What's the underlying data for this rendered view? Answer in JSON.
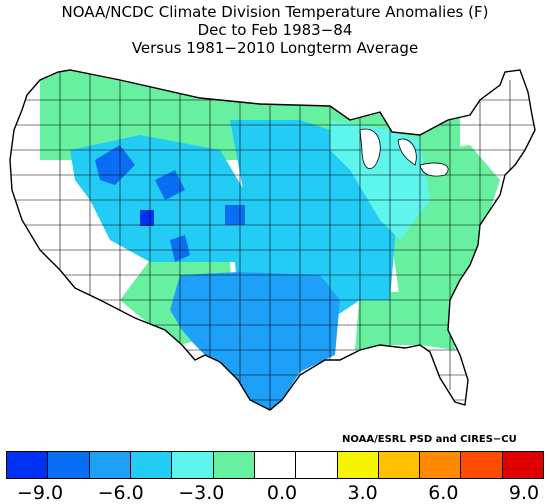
{
  "title": {
    "line1": "NOAA/NCDC Climate Division Temperature Anomalies (F)",
    "line2": "Dec to Feb 1983−84",
    "line3": "Versus 1981−2010 Longterm Average"
  },
  "credit": "NOAA/ESRL PSD and CIRES−CU",
  "legend": {
    "colors": [
      "#0030f0",
      "#0a6ef5",
      "#1ea0f8",
      "#22ccf5",
      "#5ef5ec",
      "#66f0a0",
      "#ffffff",
      "#ffffff",
      "#f5f500",
      "#ffc000",
      "#ff8a00",
      "#ff4a00",
      "#e00000"
    ],
    "ticks": [
      "−9.0",
      "−6.0",
      "−3.0",
      "0.0",
      "3.0",
      "6.0",
      "9.0"
    ]
  },
  "map_regions": {
    "northern_tier": "#66f0a0",
    "northwest_interior": "#22ccf5",
    "southwest": "#66f0a0",
    "central_plains": "#22ccf5",
    "texas_south": "#1ea0f8",
    "great_lakes": "#5ef5ec",
    "east": "#66f0a0",
    "southeast": "#66f0a0",
    "west_coast": "#ffffff",
    "northeast": "#ffffff",
    "cold_spots": "#0a6ef5"
  }
}
